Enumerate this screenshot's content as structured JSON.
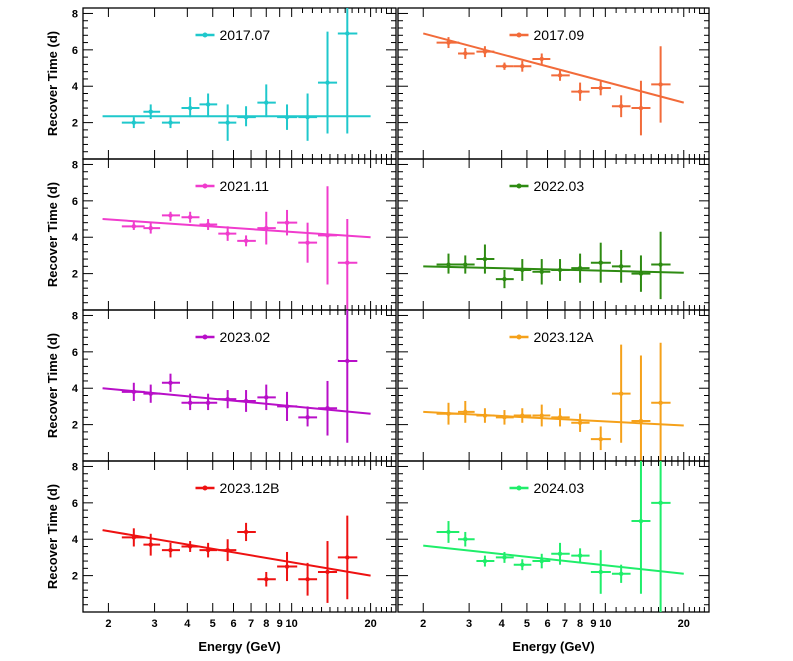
{
  "figure": {
    "ylabel": "Recover Time (d)",
    "xlabel": "Energy (GeV)",
    "x_major_ticks": [
      2,
      3,
      4,
      5,
      6,
      7,
      8,
      9,
      10,
      20
    ],
    "x_tick_labels": [
      {
        "value": 2,
        "label": "2"
      },
      {
        "value": 3,
        "label": "3"
      },
      {
        "value": 4,
        "label": "4"
      },
      {
        "value": 5,
        "label": "5"
      },
      {
        "value": 6,
        "label": "6"
      },
      {
        "value": 7,
        "label": "7"
      },
      {
        "value": 8,
        "label": "8"
      },
      {
        "value": 9,
        "label": "9"
      },
      {
        "value": 10,
        "label": "10"
      },
      {
        "value": 20,
        "label": "20"
      }
    ],
    "y_ticks": [
      2,
      4,
      6,
      8
    ],
    "y_tick_labels": [
      "2",
      "4",
      "6",
      "8"
    ]
  },
  "chart_data": [
    {
      "type": "scatter",
      "title": "2017.07",
      "color": "#1fc8cc",
      "xscale": "log",
      "xlim": [
        1.6,
        25
      ],
      "ylim": [
        0,
        8.3
      ],
      "xlabel": "Energy (GeV)",
      "ylabel": "Recover Time (d)",
      "points": [
        {
          "x": 2.5,
          "y": 2.0,
          "xlo": 2.25,
          "xhi": 2.75,
          "ylo": 1.7,
          "yhi": 2.3
        },
        {
          "x": 2.9,
          "y": 2.6,
          "xlo": 2.72,
          "xhi": 3.15,
          "ylo": 2.2,
          "yhi": 3.0
        },
        {
          "x": 3.45,
          "y": 2.0,
          "xlo": 3.2,
          "xhi": 3.75,
          "ylo": 1.7,
          "yhi": 2.3
        },
        {
          "x": 4.1,
          "y": 2.8,
          "xlo": 3.8,
          "xhi": 4.45,
          "ylo": 2.3,
          "yhi": 3.4
        },
        {
          "x": 4.8,
          "y": 3.0,
          "xlo": 4.45,
          "xhi": 5.2,
          "ylo": 2.3,
          "yhi": 3.6
        },
        {
          "x": 5.7,
          "y": 2.0,
          "xlo": 5.25,
          "xhi": 6.15,
          "ylo": 1.0,
          "yhi": 3.0
        },
        {
          "x": 6.7,
          "y": 2.3,
          "xlo": 6.2,
          "xhi": 7.3,
          "ylo": 1.8,
          "yhi": 2.9
        },
        {
          "x": 8.0,
          "y": 3.1,
          "xlo": 7.4,
          "xhi": 8.7,
          "ylo": 2.3,
          "yhi": 4.1
        },
        {
          "x": 9.6,
          "y": 2.3,
          "xlo": 8.8,
          "xhi": 10.5,
          "ylo": 1.6,
          "yhi": 3.0
        },
        {
          "x": 11.5,
          "y": 2.3,
          "xlo": 10.6,
          "xhi": 12.5,
          "ylo": 1.0,
          "yhi": 3.6
        },
        {
          "x": 13.7,
          "y": 4.2,
          "xlo": 12.6,
          "xhi": 14.9,
          "ylo": 1.4,
          "yhi": 7.0
        },
        {
          "x": 16.3,
          "y": 6.9,
          "xlo": 15.0,
          "xhi": 17.8,
          "ylo": 1.4,
          "yhi": 8.3
        }
      ],
      "fit": {
        "x": [
          1.9,
          20
        ],
        "y": [
          2.35,
          2.35
        ]
      }
    },
    {
      "type": "scatter",
      "title": "2017.09",
      "color": "#f26b3a",
      "xscale": "log",
      "xlim": [
        1.6,
        25
      ],
      "ylim": [
        0,
        8.3
      ],
      "xlabel": "Energy (GeV)",
      "ylabel": "Recover Time (d)",
      "points": [
        {
          "x": 2.5,
          "y": 6.4,
          "xlo": 2.25,
          "xhi": 2.75,
          "ylo": 6.1,
          "yhi": 6.7
        },
        {
          "x": 2.9,
          "y": 5.8,
          "xlo": 2.72,
          "xhi": 3.15,
          "ylo": 5.5,
          "yhi": 6.1
        },
        {
          "x": 3.45,
          "y": 5.9,
          "xlo": 3.2,
          "xhi": 3.75,
          "ylo": 5.6,
          "yhi": 6.2
        },
        {
          "x": 4.1,
          "y": 5.1,
          "xlo": 3.8,
          "xhi": 4.45,
          "ylo": 4.9,
          "yhi": 5.3
        },
        {
          "x": 4.8,
          "y": 5.1,
          "xlo": 4.45,
          "xhi": 5.2,
          "ylo": 4.8,
          "yhi": 5.4
        },
        {
          "x": 5.7,
          "y": 5.5,
          "xlo": 5.25,
          "xhi": 6.15,
          "ylo": 5.2,
          "yhi": 5.8
        },
        {
          "x": 6.7,
          "y": 4.6,
          "xlo": 6.2,
          "xhi": 7.3,
          "ylo": 4.3,
          "yhi": 4.9
        },
        {
          "x": 8.0,
          "y": 3.7,
          "xlo": 7.4,
          "xhi": 8.7,
          "ylo": 3.2,
          "yhi": 4.2
        },
        {
          "x": 9.6,
          "y": 3.9,
          "xlo": 8.8,
          "xhi": 10.5,
          "ylo": 3.5,
          "yhi": 4.3
        },
        {
          "x": 11.5,
          "y": 2.9,
          "xlo": 10.6,
          "xhi": 12.5,
          "ylo": 2.3,
          "yhi": 3.5
        },
        {
          "x": 13.7,
          "y": 2.8,
          "xlo": 12.6,
          "xhi": 14.9,
          "ylo": 1.3,
          "yhi": 4.3
        },
        {
          "x": 16.3,
          "y": 4.1,
          "xlo": 15.0,
          "xhi": 17.8,
          "ylo": 2.0,
          "yhi": 6.2
        }
      ],
      "fit": {
        "x": [
          2.0,
          20
        ],
        "y": [
          6.9,
          3.1
        ]
      }
    },
    {
      "type": "scatter",
      "title": "2021.11",
      "color": "#f03ccd",
      "xscale": "log",
      "xlim": [
        1.6,
        25
      ],
      "ylim": [
        0,
        8.3
      ],
      "xlabel": "Energy (GeV)",
      "ylabel": "Recover Time (d)",
      "points": [
        {
          "x": 2.5,
          "y": 4.6,
          "xlo": 2.25,
          "xhi": 2.75,
          "ylo": 4.4,
          "yhi": 4.9
        },
        {
          "x": 2.9,
          "y": 4.5,
          "xlo": 2.72,
          "xhi": 3.15,
          "ylo": 4.2,
          "yhi": 4.8
        },
        {
          "x": 3.45,
          "y": 5.2,
          "xlo": 3.2,
          "xhi": 3.75,
          "ylo": 4.9,
          "yhi": 5.4
        },
        {
          "x": 4.1,
          "y": 5.1,
          "xlo": 3.8,
          "xhi": 4.45,
          "ylo": 4.8,
          "yhi": 5.4
        },
        {
          "x": 4.8,
          "y": 4.7,
          "xlo": 4.45,
          "xhi": 5.2,
          "ylo": 4.4,
          "yhi": 5.0
        },
        {
          "x": 5.7,
          "y": 4.2,
          "xlo": 5.25,
          "xhi": 6.15,
          "ylo": 3.8,
          "yhi": 4.6
        },
        {
          "x": 6.7,
          "y": 3.8,
          "xlo": 6.2,
          "xhi": 7.3,
          "ylo": 3.5,
          "yhi": 4.1
        },
        {
          "x": 8.0,
          "y": 4.5,
          "xlo": 7.4,
          "xhi": 8.7,
          "ylo": 3.6,
          "yhi": 5.4
        },
        {
          "x": 9.6,
          "y": 4.8,
          "xlo": 8.8,
          "xhi": 10.5,
          "ylo": 4.1,
          "yhi": 5.5
        },
        {
          "x": 11.5,
          "y": 3.7,
          "xlo": 10.6,
          "xhi": 12.5,
          "ylo": 2.6,
          "yhi": 4.8
        },
        {
          "x": 13.7,
          "y": 4.1,
          "xlo": 12.6,
          "xhi": 14.9,
          "ylo": 1.4,
          "yhi": 6.8
        },
        {
          "x": 16.3,
          "y": 2.6,
          "xlo": 15.0,
          "xhi": 17.8,
          "ylo": 0.0,
          "yhi": 5.0
        }
      ],
      "fit": {
        "x": [
          1.9,
          20
        ],
        "y": [
          5.0,
          4.0
        ]
      }
    },
    {
      "type": "scatter",
      "title": "2022.03",
      "color": "#2e8b12",
      "xscale": "log",
      "xlim": [
        1.6,
        25
      ],
      "ylim": [
        0,
        8.3
      ],
      "xlabel": "Energy (GeV)",
      "ylabel": "Recover Time (d)",
      "points": [
        {
          "x": 2.5,
          "y": 2.5,
          "xlo": 2.25,
          "xhi": 2.75,
          "ylo": 2.0,
          "yhi": 3.1
        },
        {
          "x": 2.9,
          "y": 2.5,
          "xlo": 2.72,
          "xhi": 3.15,
          "ylo": 2.0,
          "yhi": 3.0
        },
        {
          "x": 3.45,
          "y": 2.8,
          "xlo": 3.2,
          "xhi": 3.75,
          "ylo": 2.0,
          "yhi": 3.6
        },
        {
          "x": 4.1,
          "y": 1.7,
          "xlo": 3.8,
          "xhi": 4.45,
          "ylo": 1.2,
          "yhi": 2.2
        },
        {
          "x": 4.8,
          "y": 2.2,
          "xlo": 4.45,
          "xhi": 5.2,
          "ylo": 1.6,
          "yhi": 2.8
        },
        {
          "x": 5.7,
          "y": 2.1,
          "xlo": 5.25,
          "xhi": 6.15,
          "ylo": 1.4,
          "yhi": 2.8
        },
        {
          "x": 6.7,
          "y": 2.2,
          "xlo": 6.2,
          "xhi": 7.3,
          "ylo": 1.6,
          "yhi": 2.8
        },
        {
          "x": 8.0,
          "y": 2.3,
          "xlo": 7.4,
          "xhi": 8.7,
          "ylo": 1.5,
          "yhi": 3.1
        },
        {
          "x": 9.6,
          "y": 2.6,
          "xlo": 8.8,
          "xhi": 10.5,
          "ylo": 1.5,
          "yhi": 3.7
        },
        {
          "x": 11.5,
          "y": 2.4,
          "xlo": 10.6,
          "xhi": 12.5,
          "ylo": 1.5,
          "yhi": 3.3
        },
        {
          "x": 13.7,
          "y": 2.0,
          "xlo": 12.6,
          "xhi": 14.9,
          "ylo": 1.0,
          "yhi": 3.0
        },
        {
          "x": 16.3,
          "y": 2.5,
          "xlo": 15.0,
          "xhi": 17.8,
          "ylo": 0.6,
          "yhi": 4.3
        }
      ],
      "fit": {
        "x": [
          2.0,
          20
        ],
        "y": [
          2.4,
          2.05
        ]
      }
    },
    {
      "type": "scatter",
      "title": "2023.02",
      "color": "#b80fc8",
      "xscale": "log",
      "xlim": [
        1.6,
        25
      ],
      "ylim": [
        0,
        8.3
      ],
      "xlabel": "Energy (GeV)",
      "ylabel": "Recover Time (d)",
      "points": [
        {
          "x": 2.5,
          "y": 3.8,
          "xlo": 2.25,
          "xhi": 2.75,
          "ylo": 3.3,
          "yhi": 4.3
        },
        {
          "x": 2.9,
          "y": 3.7,
          "xlo": 2.72,
          "xhi": 3.15,
          "ylo": 3.2,
          "yhi": 4.2
        },
        {
          "x": 3.45,
          "y": 4.3,
          "xlo": 3.2,
          "xhi": 3.75,
          "ylo": 3.8,
          "yhi": 4.8
        },
        {
          "x": 4.1,
          "y": 3.2,
          "xlo": 3.8,
          "xhi": 4.45,
          "ylo": 2.8,
          "yhi": 3.7
        },
        {
          "x": 4.8,
          "y": 3.2,
          "xlo": 4.45,
          "xhi": 5.2,
          "ylo": 2.8,
          "yhi": 3.7
        },
        {
          "x": 5.7,
          "y": 3.4,
          "xlo": 5.25,
          "xhi": 6.15,
          "ylo": 2.9,
          "yhi": 3.9
        },
        {
          "x": 6.7,
          "y": 3.3,
          "xlo": 6.2,
          "xhi": 7.3,
          "ylo": 2.7,
          "yhi": 3.9
        },
        {
          "x": 8.0,
          "y": 3.5,
          "xlo": 7.4,
          "xhi": 8.7,
          "ylo": 2.8,
          "yhi": 4.2
        },
        {
          "x": 9.6,
          "y": 3.0,
          "xlo": 8.8,
          "xhi": 10.5,
          "ylo": 2.2,
          "yhi": 3.8
        },
        {
          "x": 11.5,
          "y": 2.4,
          "xlo": 10.6,
          "xhi": 12.5,
          "ylo": 1.9,
          "yhi": 3.0
        },
        {
          "x": 13.7,
          "y": 2.9,
          "xlo": 12.6,
          "xhi": 14.9,
          "ylo": 1.4,
          "yhi": 4.4
        },
        {
          "x": 16.3,
          "y": 5.5,
          "xlo": 15.0,
          "xhi": 17.8,
          "ylo": 1.0,
          "yhi": 8.3
        }
      ],
      "fit": {
        "x": [
          1.9,
          20
        ],
        "y": [
          4.0,
          2.6
        ]
      }
    },
    {
      "type": "scatter",
      "title": "2023.12A",
      "color": "#f5a11a",
      "xscale": "log",
      "xlim": [
        1.6,
        25
      ],
      "ylim": [
        0,
        8.3
      ],
      "xlabel": "Energy (GeV)",
      "ylabel": "Recover Time (d)",
      "points": [
        {
          "x": 2.5,
          "y": 2.6,
          "xlo": 2.25,
          "xhi": 2.75,
          "ylo": 2.0,
          "yhi": 3.2
        },
        {
          "x": 2.9,
          "y": 2.7,
          "xlo": 2.72,
          "xhi": 3.15,
          "ylo": 2.1,
          "yhi": 3.3
        },
        {
          "x": 3.45,
          "y": 2.5,
          "xlo": 3.2,
          "xhi": 3.75,
          "ylo": 2.1,
          "yhi": 2.9
        },
        {
          "x": 4.1,
          "y": 2.4,
          "xlo": 3.8,
          "xhi": 4.45,
          "ylo": 2.0,
          "yhi": 2.8
        },
        {
          "x": 4.8,
          "y": 2.5,
          "xlo": 4.45,
          "xhi": 5.2,
          "ylo": 2.1,
          "yhi": 2.9
        },
        {
          "x": 5.7,
          "y": 2.5,
          "xlo": 5.25,
          "xhi": 6.15,
          "ylo": 1.9,
          "yhi": 3.1
        },
        {
          "x": 6.7,
          "y": 2.4,
          "xlo": 6.2,
          "xhi": 7.3,
          "ylo": 1.9,
          "yhi": 2.9
        },
        {
          "x": 8.0,
          "y": 2.1,
          "xlo": 7.4,
          "xhi": 8.7,
          "ylo": 1.6,
          "yhi": 2.6
        },
        {
          "x": 9.6,
          "y": 1.2,
          "xlo": 8.8,
          "xhi": 10.5,
          "ylo": 0.6,
          "yhi": 1.9
        },
        {
          "x": 11.5,
          "y": 3.7,
          "xlo": 10.6,
          "xhi": 12.5,
          "ylo": 1.0,
          "yhi": 6.4
        },
        {
          "x": 13.7,
          "y": 2.2,
          "xlo": 12.6,
          "xhi": 14.9,
          "ylo": 0.0,
          "yhi": 5.8
        },
        {
          "x": 16.3,
          "y": 3.2,
          "xlo": 15.0,
          "xhi": 17.8,
          "ylo": 0.0,
          "yhi": 6.5
        }
      ],
      "fit": {
        "x": [
          2.0,
          20
        ],
        "y": [
          2.7,
          1.95
        ]
      }
    },
    {
      "type": "scatter",
      "title": "2023.12B",
      "color": "#ee1111",
      "xscale": "log",
      "xlim": [
        1.6,
        25
      ],
      "ylim": [
        0,
        8.3
      ],
      "xlabel": "Energy (GeV)",
      "ylabel": "Recover Time (d)",
      "points": [
        {
          "x": 2.5,
          "y": 4.1,
          "xlo": 2.25,
          "xhi": 2.75,
          "ylo": 3.6,
          "yhi": 4.6
        },
        {
          "x": 2.9,
          "y": 3.7,
          "xlo": 2.72,
          "xhi": 3.15,
          "ylo": 3.1,
          "yhi": 4.3
        },
        {
          "x": 3.45,
          "y": 3.4,
          "xlo": 3.2,
          "xhi": 3.75,
          "ylo": 3.0,
          "yhi": 3.8
        },
        {
          "x": 4.1,
          "y": 3.6,
          "xlo": 3.8,
          "xhi": 4.45,
          "ylo": 3.3,
          "yhi": 3.9
        },
        {
          "x": 4.8,
          "y": 3.4,
          "xlo": 4.45,
          "xhi": 5.2,
          "ylo": 3.0,
          "yhi": 3.8
        },
        {
          "x": 5.7,
          "y": 3.4,
          "xlo": 5.25,
          "xhi": 6.15,
          "ylo": 2.8,
          "yhi": 4.0
        },
        {
          "x": 6.7,
          "y": 4.4,
          "xlo": 6.2,
          "xhi": 7.3,
          "ylo": 3.9,
          "yhi": 4.9
        },
        {
          "x": 8.0,
          "y": 1.8,
          "xlo": 7.4,
          "xhi": 8.7,
          "ylo": 1.4,
          "yhi": 2.2
        },
        {
          "x": 9.6,
          "y": 2.5,
          "xlo": 8.8,
          "xhi": 10.5,
          "ylo": 1.7,
          "yhi": 3.3
        },
        {
          "x": 11.5,
          "y": 1.8,
          "xlo": 10.6,
          "xhi": 12.5,
          "ylo": 0.9,
          "yhi": 2.7
        },
        {
          "x": 13.7,
          "y": 2.2,
          "xlo": 12.6,
          "xhi": 14.9,
          "ylo": 0.5,
          "yhi": 3.9
        },
        {
          "x": 16.3,
          "y": 3.0,
          "xlo": 15.0,
          "xhi": 17.8,
          "ylo": 0.7,
          "yhi": 5.3
        }
      ],
      "fit": {
        "x": [
          1.9,
          20
        ],
        "y": [
          4.5,
          2.0
        ]
      }
    },
    {
      "type": "scatter",
      "title": "2024.03",
      "color": "#1fee6a",
      "xscale": "log",
      "xlim": [
        1.6,
        25
      ],
      "ylim": [
        0,
        8.3
      ],
      "xlabel": "Energy (GeV)",
      "ylabel": "Recover Time (d)",
      "points": [
        {
          "x": 2.5,
          "y": 4.4,
          "xlo": 2.25,
          "xhi": 2.75,
          "ylo": 3.8,
          "yhi": 5.0
        },
        {
          "x": 2.9,
          "y": 4.0,
          "xlo": 2.72,
          "xhi": 3.15,
          "ylo": 3.6,
          "yhi": 4.4
        },
        {
          "x": 3.45,
          "y": 2.8,
          "xlo": 3.2,
          "xhi": 3.75,
          "ylo": 2.5,
          "yhi": 3.1
        },
        {
          "x": 4.1,
          "y": 3.0,
          "xlo": 3.8,
          "xhi": 4.45,
          "ylo": 2.7,
          "yhi": 3.3
        },
        {
          "x": 4.8,
          "y": 2.6,
          "xlo": 4.45,
          "xhi": 5.2,
          "ylo": 2.3,
          "yhi": 2.9
        },
        {
          "x": 5.7,
          "y": 2.8,
          "xlo": 5.25,
          "xhi": 6.15,
          "ylo": 2.4,
          "yhi": 3.2
        },
        {
          "x": 6.7,
          "y": 3.2,
          "xlo": 6.2,
          "xhi": 7.3,
          "ylo": 2.6,
          "yhi": 3.8
        },
        {
          "x": 8.0,
          "y": 3.1,
          "xlo": 7.4,
          "xhi": 8.7,
          "ylo": 2.7,
          "yhi": 3.5
        },
        {
          "x": 9.6,
          "y": 2.2,
          "xlo": 8.8,
          "xhi": 10.5,
          "ylo": 1.0,
          "yhi": 3.4
        },
        {
          "x": 11.5,
          "y": 2.1,
          "xlo": 10.6,
          "xhi": 12.5,
          "ylo": 1.6,
          "yhi": 2.6
        },
        {
          "x": 13.7,
          "y": 5.0,
          "xlo": 12.6,
          "xhi": 14.9,
          "ylo": 1.0,
          "yhi": 8.3
        },
        {
          "x": 16.3,
          "y": 6.0,
          "xlo": 15.0,
          "xhi": 17.8,
          "ylo": 0.0,
          "yhi": 8.3
        }
      ],
      "fit": {
        "x": [
          2.0,
          20
        ],
        "y": [
          3.65,
          2.1
        ]
      }
    }
  ]
}
